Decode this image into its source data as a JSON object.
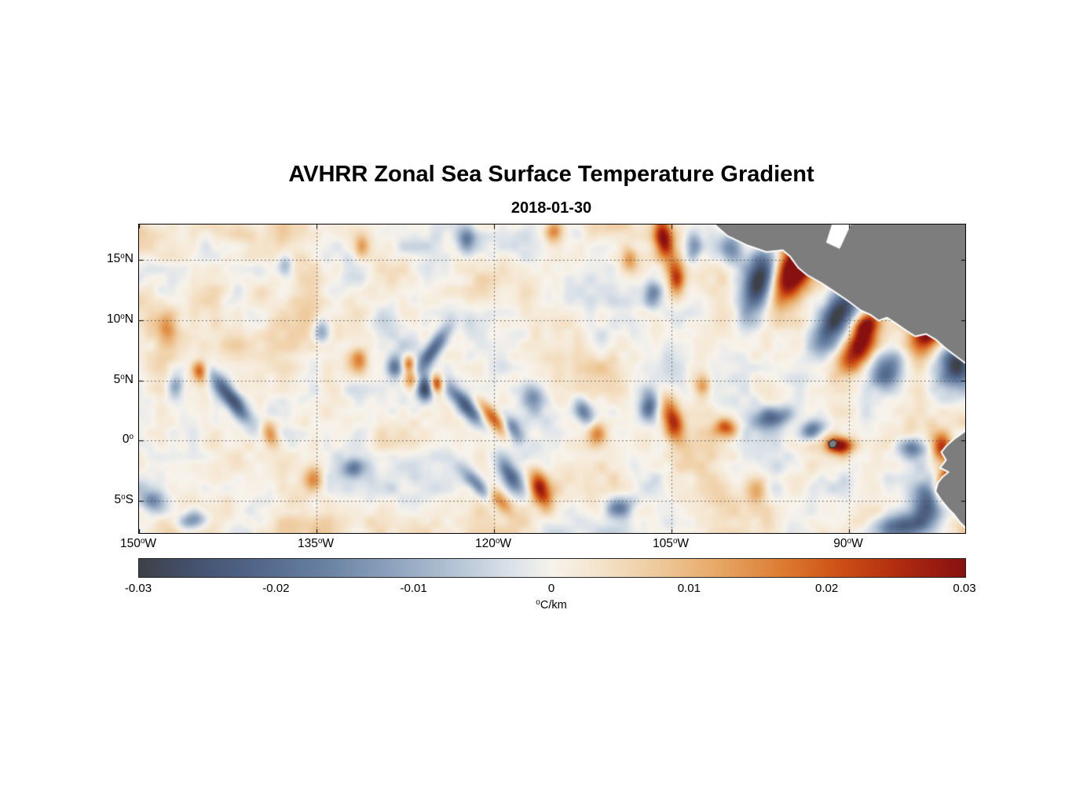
{
  "page": {
    "background": "#ffffff"
  },
  "chart_data": {
    "type": "heatmap",
    "title": "AVHRR Zonal Sea Surface Temperature Gradient",
    "subtitle": "2018-01-30",
    "degree_mark": "o",
    "x_range": [
      -150,
      -80.18
    ],
    "y_range": [
      -7.66,
      17.93
    ],
    "x_ticks": [
      {
        "value": -150,
        "num": "150",
        "hemi": "W"
      },
      {
        "value": -135,
        "num": "135",
        "hemi": "W"
      },
      {
        "value": -120,
        "num": "120",
        "hemi": "W"
      },
      {
        "value": -105,
        "num": "105",
        "hemi": "W"
      },
      {
        "value": -90,
        "num": "90",
        "hemi": "W"
      }
    ],
    "y_ticks": [
      {
        "value": 15,
        "num": "15",
        "hemi": "N"
      },
      {
        "value": 10,
        "num": "10",
        "hemi": "N"
      },
      {
        "value": 5,
        "num": "5",
        "hemi": "N"
      },
      {
        "value": 0,
        "num": "0",
        "hemi": ""
      },
      {
        "value": -5,
        "num": "5",
        "hemi": "S"
      }
    ],
    "grid": true,
    "grid_color": "#4a4a4a",
    "plot_border_color": "#000000",
    "colorbar": {
      "min": -0.03,
      "max": 0.03,
      "ticks": [
        -0.03,
        -0.02,
        -0.01,
        0,
        0.01,
        0.02,
        0.03
      ],
      "tick_labels": [
        "-0.03",
        "-0.02",
        "-0.01",
        "0",
        "0.01",
        "0.02",
        "0.03"
      ],
      "unit": "C/km"
    },
    "colormap": [
      [
        0.0,
        "#3e4147"
      ],
      [
        0.06,
        "#44506b"
      ],
      [
        0.13,
        "#4f6386"
      ],
      [
        0.22,
        "#6780a1"
      ],
      [
        0.3,
        "#8ba0bc"
      ],
      [
        0.38,
        "#b4c3d4"
      ],
      [
        0.45,
        "#dbe2e9"
      ],
      [
        0.5,
        "#f7f3ec"
      ],
      [
        0.55,
        "#f5e6d0"
      ],
      [
        0.62,
        "#efcda2"
      ],
      [
        0.7,
        "#e7a866"
      ],
      [
        0.78,
        "#dc7b31"
      ],
      [
        0.85,
        "#cd4f15"
      ],
      [
        0.92,
        "#b02b10"
      ],
      [
        1.0,
        "#871111"
      ]
    ],
    "field": {
      "seed": 20180130,
      "bias": 0.0012,
      "noise_amp": 0.0095,
      "octaves": [
        {
          "cells_x": 16,
          "cells_y": 6,
          "weight": 0.45
        },
        {
          "cells_x": 34,
          "cells_y": 13,
          "weight": 0.33
        },
        {
          "cells_x": 75,
          "cells_y": 28,
          "weight": 0.22
        }
      ]
    },
    "features": [
      [
        -95.0,
        13.8,
        1.0,
        1.8,
        -20,
        0.034
      ],
      [
        -93.8,
        15.2,
        0.7,
        0.9,
        0,
        0.026
      ],
      [
        -97.6,
        13.2,
        0.9,
        2.0,
        -15,
        -0.032
      ],
      [
        -99.8,
        15.8,
        0.7,
        1.0,
        10,
        -0.016
      ],
      [
        -91.0,
        10.3,
        0.8,
        2.0,
        -30,
        -0.03
      ],
      [
        -88.6,
        9.6,
        0.6,
        1.0,
        -35,
        0.026
      ],
      [
        -89.2,
        7.6,
        0.8,
        1.6,
        -35,
        0.03
      ],
      [
        -86.8,
        5.8,
        0.8,
        1.2,
        -30,
        -0.02
      ],
      [
        -105.7,
        16.8,
        0.55,
        1.3,
        10,
        0.027
      ],
      [
        -104.6,
        13.6,
        0.5,
        1.1,
        0,
        0.022
      ],
      [
        -106.6,
        12.1,
        0.55,
        0.9,
        0,
        -0.017
      ],
      [
        -103.1,
        16.1,
        0.5,
        0.8,
        0,
        -0.015
      ],
      [
        -108.6,
        15.1,
        0.5,
        0.7,
        0,
        0.014
      ],
      [
        -83.4,
        8.7,
        0.8,
        1.2,
        -40,
        0.027
      ],
      [
        -80.9,
        6.3,
        0.9,
        1.2,
        0,
        -0.028
      ],
      [
        -90.8,
        -0.4,
        0.8,
        0.5,
        0,
        0.031
      ],
      [
        -93.1,
        0.9,
        0.9,
        0.55,
        20,
        -0.021
      ],
      [
        -96.4,
        1.9,
        1.1,
        0.6,
        10,
        -0.021
      ],
      [
        -100.4,
        1.1,
        0.7,
        0.55,
        0,
        0.019
      ],
      [
        -104.9,
        1.6,
        0.6,
        1.4,
        15,
        0.028
      ],
      [
        -106.9,
        2.9,
        0.55,
        0.9,
        0,
        -0.021
      ],
      [
        -102.4,
        4.6,
        0.55,
        0.7,
        0,
        0.017
      ],
      [
        -81.5,
        -3.3,
        0.7,
        1.5,
        -30,
        0.034
      ],
      [
        -83.2,
        -5.1,
        0.9,
        1.1,
        -20,
        -0.027
      ],
      [
        -85.6,
        -7.1,
        1.7,
        0.7,
        10,
        -0.024
      ],
      [
        -82.2,
        -0.6,
        0.6,
        0.8,
        0,
        0.021
      ],
      [
        -84.6,
        -0.6,
        0.9,
        0.6,
        0,
        -0.018
      ],
      [
        -125.8,
        4.3,
        0.5,
        0.75,
        0,
        -0.03
      ],
      [
        -124.9,
        4.7,
        0.4,
        0.55,
        0,
        0.025
      ],
      [
        -127.0,
        5.0,
        0.45,
        0.6,
        0,
        0.016
      ],
      [
        -122.4,
        2.9,
        0.45,
        1.5,
        40,
        -0.025
      ],
      [
        -120.1,
        1.9,
        0.45,
        1.3,
        40,
        0.019
      ],
      [
        -118.4,
        0.9,
        0.45,
        0.95,
        35,
        -0.017
      ],
      [
        -121.1,
        -3.9,
        0.45,
        1.4,
        45,
        -0.021
      ],
      [
        -119.7,
        -4.9,
        0.45,
        1.1,
        45,
        0.02
      ],
      [
        -116.6,
        3.6,
        0.55,
        0.75,
        0,
        -0.015
      ],
      [
        -112.4,
        2.4,
        0.55,
        0.85,
        30,
        -0.019
      ],
      [
        -111.3,
        0.6,
        0.55,
        0.75,
        0,
        0.015
      ],
      [
        -142.3,
        3.6,
        0.5,
        1.9,
        38,
        -0.028
      ],
      [
        -144.9,
        5.8,
        0.45,
        0.65,
        0,
        0.019
      ],
      [
        -146.9,
        4.6,
        0.5,
        0.75,
        0,
        -0.015
      ],
      [
        -134.6,
        9.1,
        0.5,
        0.75,
        0,
        -0.015
      ],
      [
        -131.4,
        6.6,
        0.55,
        0.85,
        0,
        0.015
      ],
      [
        -128.4,
        6.1,
        0.45,
        0.65,
        0,
        -0.017
      ],
      [
        -127.2,
        6.4,
        0.38,
        0.5,
        0,
        0.019
      ],
      [
        -125.1,
        7.6,
        0.45,
        1.5,
        -35,
        -0.024
      ],
      [
        -122.3,
        16.6,
        0.5,
        0.75,
        0,
        -0.016
      ],
      [
        -114.9,
        17.3,
        0.55,
        0.65,
        0,
        0.017
      ],
      [
        -131.2,
        16.1,
        0.45,
        0.65,
        0,
        0.015
      ],
      [
        -137.6,
        14.6,
        0.5,
        0.75,
        0,
        -0.012
      ],
      [
        -147.6,
        9.1,
        0.6,
        0.95,
        0,
        0.012
      ],
      [
        -145.4,
        -6.6,
        0.8,
        0.5,
        10,
        -0.017
      ],
      [
        -135.2,
        -3.2,
        0.55,
        0.75,
        0,
        0.015
      ],
      [
        -131.9,
        -2.3,
        0.65,
        0.55,
        20,
        -0.015
      ],
      [
        -116.1,
        -3.9,
        0.55,
        1.1,
        20,
        0.025
      ],
      [
        -118.6,
        -2.9,
        0.55,
        1.2,
        30,
        -0.023
      ],
      [
        -148.8,
        -5.0,
        0.7,
        0.6,
        0,
        -0.014
      ],
      [
        -138.9,
        0.5,
        0.5,
        0.8,
        20,
        0.014
      ],
      [
        -109.5,
        -5.5,
        0.8,
        0.6,
        10,
        -0.016
      ],
      [
        -97.8,
        -4.0,
        0.6,
        0.8,
        0,
        0.016
      ]
    ],
    "land": [
      {
        "name": "central-america",
        "fill": "#7d7d7d",
        "stroke": "#ffffff",
        "stroke_width": 2,
        "points": [
          [
            -101.8,
            18.3
          ],
          [
            -100.3,
            17.0
          ],
          [
            -98.6,
            16.2
          ],
          [
            -97.0,
            15.65
          ],
          [
            -95.6,
            15.8
          ],
          [
            -95.0,
            15.3
          ],
          [
            -94.3,
            14.35
          ],
          [
            -93.5,
            13.7
          ],
          [
            -92.3,
            13.05
          ],
          [
            -91.3,
            12.4
          ],
          [
            -90.1,
            11.6
          ],
          [
            -89.0,
            10.8
          ],
          [
            -88.2,
            10.45
          ],
          [
            -87.5,
            9.95
          ],
          [
            -86.8,
            10.2
          ],
          [
            -86.0,
            9.7
          ],
          [
            -85.2,
            9.15
          ],
          [
            -84.4,
            8.65
          ],
          [
            -83.5,
            8.85
          ],
          [
            -82.7,
            8.4
          ],
          [
            -81.7,
            7.55
          ],
          [
            -81.1,
            7.1
          ],
          [
            -80.2,
            6.45
          ],
          [
            -79.5,
            6.8
          ],
          [
            -77.5,
            6.5
          ],
          [
            -77.5,
            18.3
          ]
        ]
      },
      {
        "name": "caribbean-mask",
        "fill": "#ffffff",
        "stroke": "#ffffff",
        "stroke_width": 1,
        "points": [
          [
            -91.3,
            18.3
          ],
          [
            -89.7,
            18.3
          ],
          [
            -90.8,
            15.95
          ],
          [
            -91.9,
            16.45
          ]
        ]
      },
      {
        "name": "south-america",
        "fill": "#7d7d7d",
        "stroke": "#ffffff",
        "stroke_width": 2,
        "points": [
          [
            -79.9,
            1.0
          ],
          [
            -80.6,
            0.5
          ],
          [
            -81.1,
            0.15
          ],
          [
            -81.7,
            -0.35
          ],
          [
            -82.2,
            -0.95
          ],
          [
            -81.8,
            -1.6
          ],
          [
            -82.3,
            -2.25
          ],
          [
            -81.6,
            -2.6
          ],
          [
            -82.1,
            -3.0
          ],
          [
            -82.5,
            -3.5
          ],
          [
            -82.7,
            -4.2
          ],
          [
            -82.2,
            -4.95
          ],
          [
            -81.6,
            -5.65
          ],
          [
            -81.1,
            -6.15
          ],
          [
            -80.6,
            -6.8
          ],
          [
            -80.1,
            -7.3
          ],
          [
            -79.6,
            -8.3
          ],
          [
            -77.5,
            -8.3
          ],
          [
            -77.5,
            1.5
          ]
        ]
      },
      {
        "name": "galapagos-islands",
        "fill": "#7d7d7d",
        "stroke": "#333333",
        "stroke_width": 1.5,
        "points": [
          [
            -91.75,
            -0.15
          ],
          [
            -91.35,
            0.1
          ],
          [
            -91.0,
            -0.1
          ],
          [
            -91.15,
            -0.55
          ],
          [
            -91.6,
            -0.6
          ]
        ]
      }
    ]
  }
}
